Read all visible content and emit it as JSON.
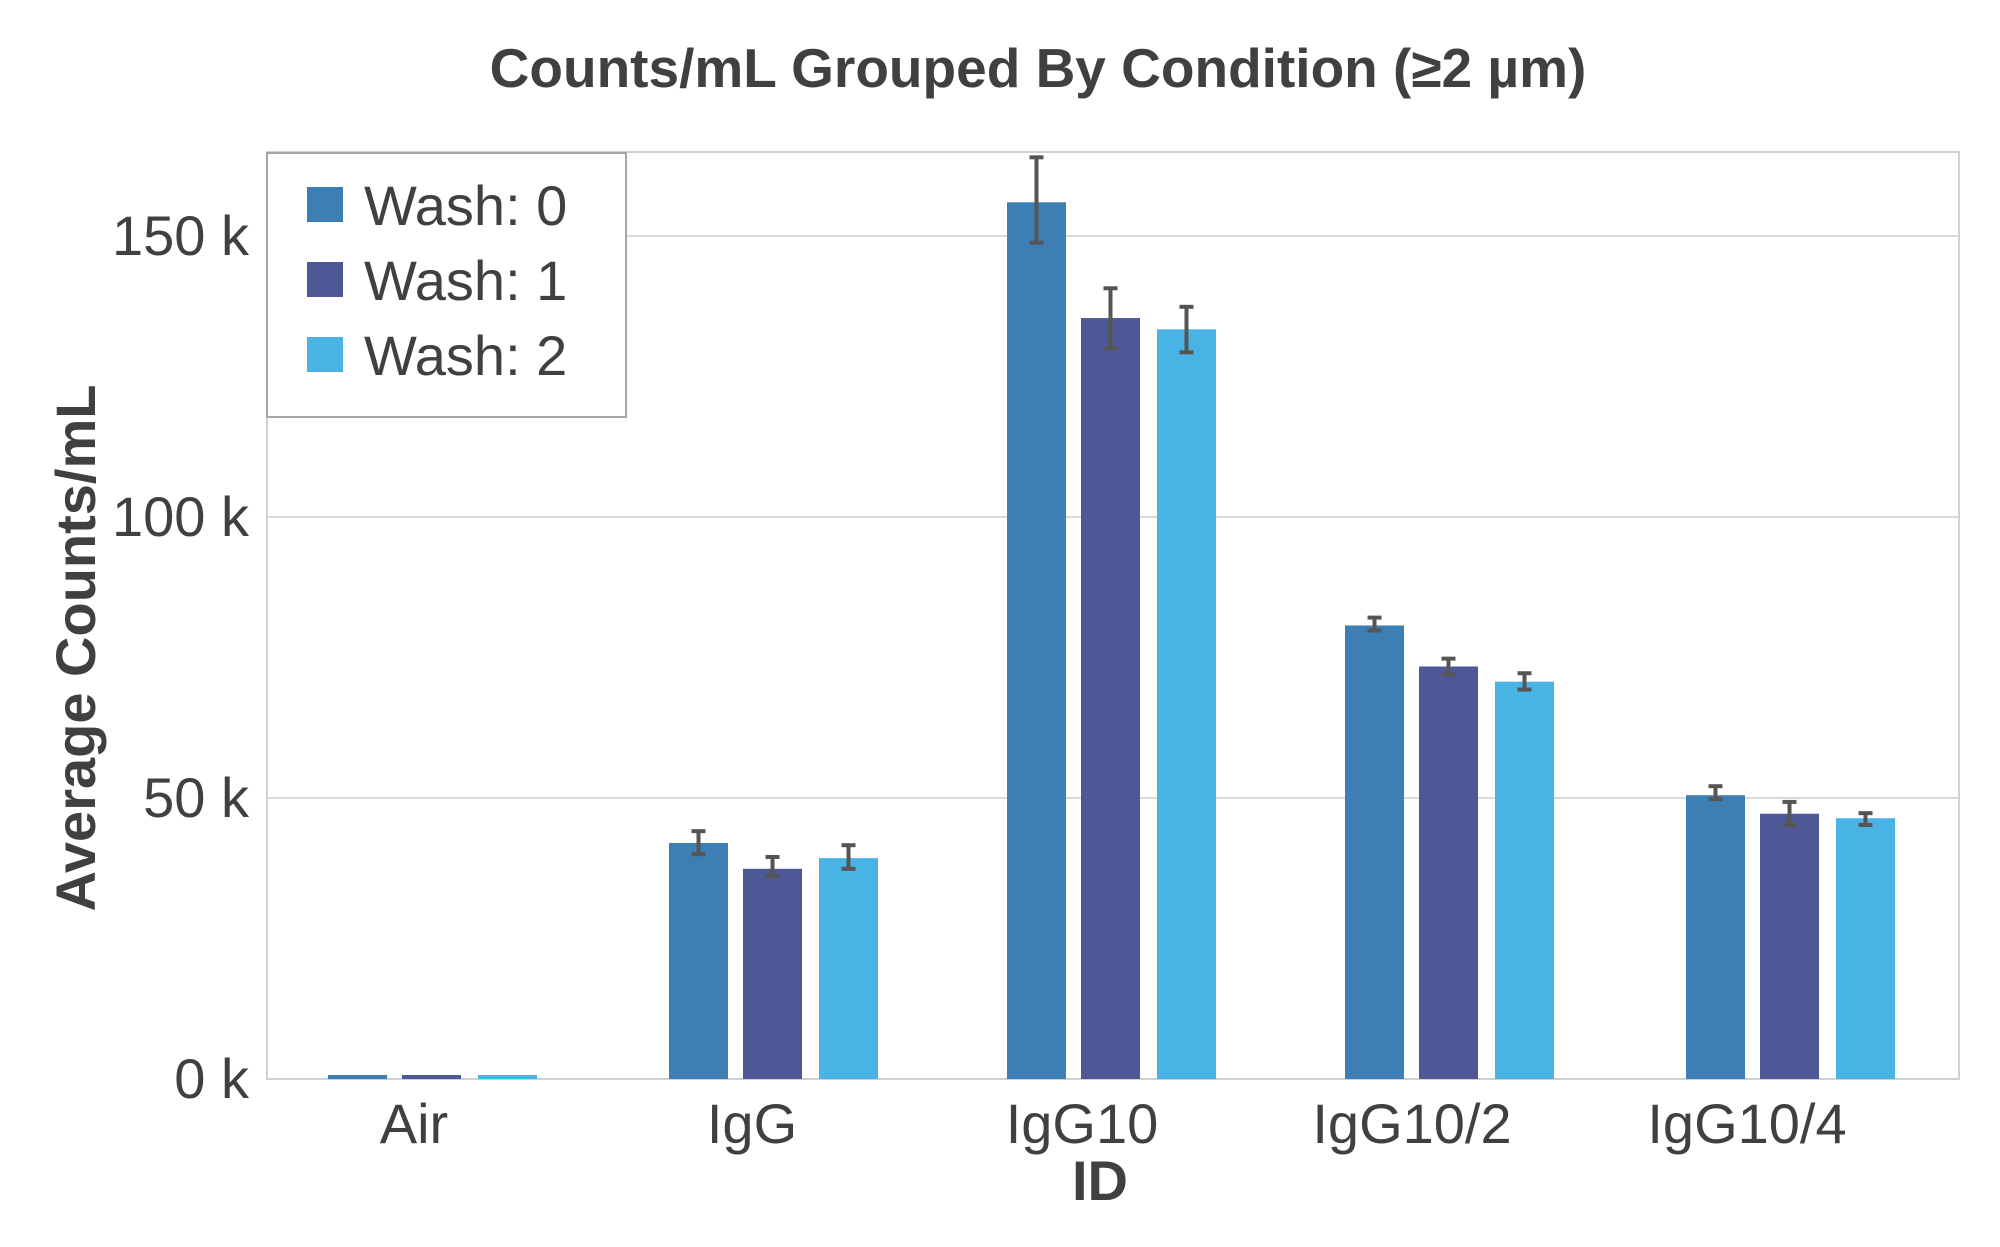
{
  "chart_data": {
    "type": "bar",
    "title": "Counts/mL Grouped By Condition (≥2 µm)",
    "xlabel": "ID",
    "ylabel": "Average Counts/mL",
    "categories": [
      "Air",
      "IgG",
      "IgG10",
      "IgG10/2",
      "IgG10/4"
    ],
    "ylim": [
      0,
      165000
    ],
    "yticks": [
      0,
      50000,
      100000,
      150000
    ],
    "ytick_labels": [
      "0 k",
      "50 k",
      "100 k",
      "150 k"
    ],
    "grid": true,
    "legend_position": "upper left",
    "series": [
      {
        "name": "Wash: 0",
        "color": "#3D7EB4",
        "values": [
          700,
          42000,
          156000,
          80700,
          50500
        ],
        "error_low": [
          700,
          40000,
          148800,
          79800,
          49800
        ],
        "error_high": [
          700,
          44100,
          164000,
          82100,
          52100
        ]
      },
      {
        "name": "Wash: 1",
        "color": "#4F5897",
        "values": [
          700,
          37400,
          135400,
          73400,
          47200
        ],
        "error_low": [
          700,
          36100,
          130000,
          72000,
          45200
        ],
        "error_high": [
          700,
          39500,
          140700,
          74800,
          49300
        ]
      },
      {
        "name": "Wash: 2",
        "color": "#4AB3E6",
        "values": [
          700,
          39300,
          133400,
          70700,
          46400
        ],
        "error_low": [
          700,
          37400,
          129300,
          69300,
          45200
        ],
        "error_high": [
          700,
          41600,
          137400,
          72200,
          47300
        ]
      }
    ]
  },
  "style": {
    "text_color": "#404040",
    "grid_color": "#D9D9D9",
    "border_color": "#D0D0D0",
    "legend_border_color": "#A6A6A6",
    "error_bar_color": "#555555"
  }
}
